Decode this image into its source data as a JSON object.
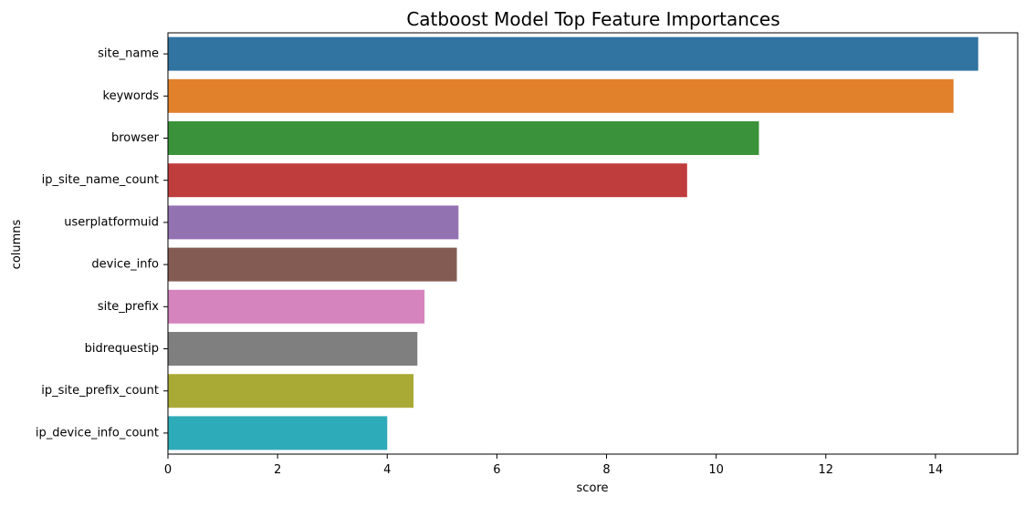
{
  "chart_data": {
    "type": "bar",
    "orientation": "horizontal",
    "title": "Catboost Model Top Feature Importances",
    "xlabel": "score",
    "ylabel": "columns",
    "xlim": [
      0,
      15.5
    ],
    "xticks": [
      0,
      2,
      4,
      6,
      8,
      10,
      12,
      14
    ],
    "grid": false,
    "categories": [
      "site_name",
      "keywords",
      "browser",
      "ip_site_name_count",
      "userplatformuid",
      "device_info",
      "site_prefix",
      "bidrequestip",
      "ip_site_prefix_count",
      "ip_device_info_count"
    ],
    "values": [
      14.78,
      14.33,
      10.78,
      9.47,
      5.3,
      5.27,
      4.68,
      4.55,
      4.48,
      4.0
    ],
    "colors": [
      "#3274a1",
      "#e1812c",
      "#3a923a",
      "#c03d3e",
      "#9372b2",
      "#845b53",
      "#d684bd",
      "#7f7f7f",
      "#a9aa35",
      "#2eabb8"
    ]
  }
}
